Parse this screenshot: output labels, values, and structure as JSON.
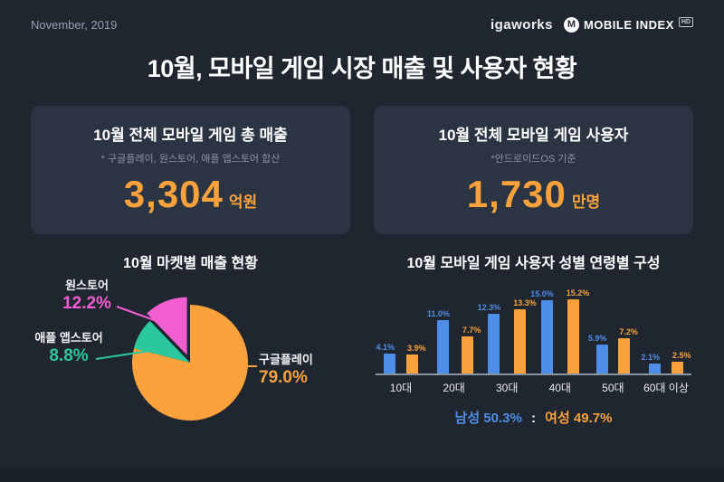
{
  "page": {
    "date": "November, 2019",
    "title": "10월, 모바일 게임 시장 매출 및 사용자 현황"
  },
  "brand": {
    "left": "igaworks",
    "m": "M",
    "right": "MOBILE INDEX",
    "badge": "HD"
  },
  "stat_cards": [
    {
      "title": "10월 전체 모바일 게임 총 매출",
      "note": "* 구글플레이, 원스토어, 애플 앱스토어 합산",
      "value": "3,304",
      "unit": "억원"
    },
    {
      "title": "10월 전체 모바일 게임 사용자",
      "note": "*안드로이드OS 기준",
      "value": "1,730",
      "unit": "만명"
    }
  ],
  "colors": {
    "page_bg": "#1F2630",
    "card_bg": "#2B3442",
    "accent_orange": "#F9A23B",
    "pink": "#F25ED2",
    "teal": "#2BC79E",
    "blue": "#4E8EE8",
    "muted_text": "#8B95A3"
  },
  "chart_data": [
    {
      "type": "pie",
      "title": "10월 마켓별 매출 현황",
      "slices": [
        {
          "label": "구글플레이",
          "value": 79.0,
          "display": "79.0%",
          "color": "#F9A23B",
          "explode": 0
        },
        {
          "label": "애플 앱스토어",
          "value": 8.8,
          "display": "8.8%",
          "color": "#2BC79E",
          "explode": 0
        },
        {
          "label": "원스토어",
          "value": 12.2,
          "display": "12.2%",
          "color": "#F25ED2",
          "explode": 9
        }
      ],
      "start_angle_deg": 0,
      "clockwise": true
    },
    {
      "type": "bar",
      "title": "10월 모바일 게임 사용자 성별 연령별 구성",
      "categories": [
        "10대",
        "20대",
        "30대",
        "40대",
        "50대",
        "60대 이상"
      ],
      "series": [
        {
          "name": "남성",
          "color": "#4E8EE8",
          "values": [
            4.1,
            11.0,
            12.3,
            15.0,
            5.9,
            2.1
          ],
          "value_labels": [
            "4.1%",
            "11.0%",
            "12.3%",
            "15.0%",
            "5.9%",
            "2.1%"
          ]
        },
        {
          "name": "여성",
          "color": "#F9A23B",
          "values": [
            3.9,
            7.7,
            13.3,
            15.2,
            7.2,
            2.5
          ],
          "value_labels": [
            "3.9%",
            "7.7%",
            "13.3%",
            "15.2%",
            "7.2%",
            "2.5%"
          ]
        }
      ],
      "ylim": [
        0,
        16
      ],
      "grid": false,
      "footer": {
        "male": "남성 50.3%",
        "separator": ":",
        "female": "여성 49.7%"
      }
    }
  ]
}
